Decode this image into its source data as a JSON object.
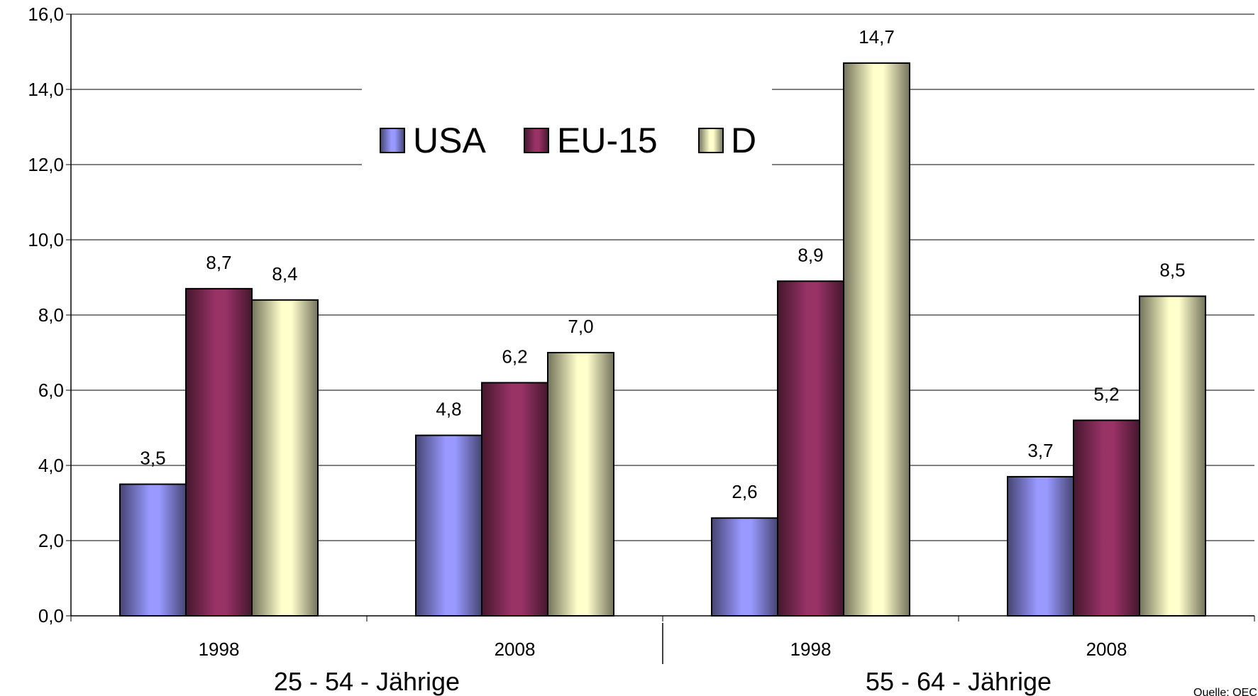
{
  "chart_data": {
    "type": "bar",
    "categories": [
      "1998",
      "2008",
      "1998",
      "2008"
    ],
    "groups": [
      "25 - 54 - Jährige",
      "55 - 64 - Jährige"
    ],
    "series": [
      {
        "name": "USA",
        "values": [
          3.5,
          4.8,
          2.6,
          3.7
        ],
        "labels": [
          "3,5",
          "4,8",
          "2,6",
          "3,7"
        ],
        "color": "#9999ff"
      },
      {
        "name": "EU-15",
        "values": [
          8.7,
          6.2,
          8.9,
          5.2
        ],
        "labels": [
          "8,7",
          "6,2",
          "8,9",
          "5,2"
        ],
        "color": "#993366"
      },
      {
        "name": "D",
        "values": [
          8.4,
          7.0,
          14.7,
          8.5
        ],
        "labels": [
          "8,4",
          "7,0",
          "14,7",
          "8,5"
        ],
        "color": "#ffffcc"
      }
    ],
    "yticks": [
      "0,0",
      "2,0",
      "4,0",
      "6,0",
      "8,0",
      "10,0",
      "12,0",
      "14,0",
      "16,0"
    ],
    "ylim": [
      0,
      16
    ],
    "grid": true,
    "legend_position": "top-center",
    "source": "Quelle: OECD"
  }
}
